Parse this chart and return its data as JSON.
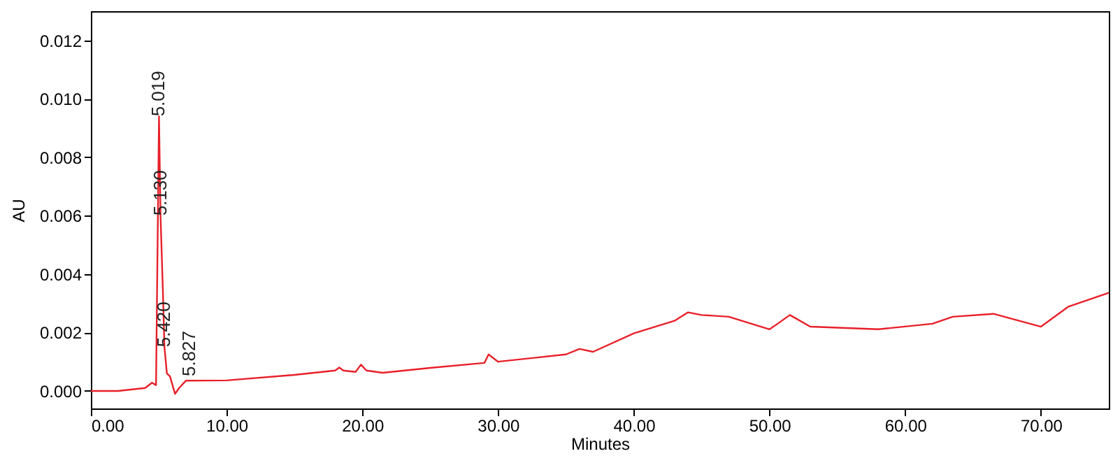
{
  "chart_data": {
    "type": "line",
    "xlabel": "Minutes",
    "ylabel": "AU",
    "xlim": [
      0,
      75
    ],
    "ylim": [
      -0.0006,
      0.013
    ],
    "xticks": [
      {
        "value": 0,
        "label": "0.00"
      },
      {
        "value": 10,
        "label": "10.00"
      },
      {
        "value": 20,
        "label": "20.00"
      },
      {
        "value": 30,
        "label": "30.00"
      },
      {
        "value": 40,
        "label": "40.00"
      },
      {
        "value": 50,
        "label": "50.00"
      },
      {
        "value": 60,
        "label": "60.00"
      },
      {
        "value": 70,
        "label": "70.00"
      }
    ],
    "yticks": [
      {
        "value": 0,
        "label": "0.000"
      },
      {
        "value": 0.002,
        "label": "0.002"
      },
      {
        "value": 0.004,
        "label": "0.004"
      },
      {
        "value": 0.006,
        "label": "0.006"
      },
      {
        "value": 0.008,
        "label": "0.008"
      },
      {
        "value": 0.01,
        "label": "0.010"
      },
      {
        "value": 0.012,
        "label": "0.012"
      }
    ],
    "grid": false,
    "marker": "none",
    "line_style": "solid",
    "x": [
      0,
      2,
      4,
      4.5,
      4.8,
      5.019,
      5.13,
      5.3,
      5.42,
      5.6,
      5.827,
      6.2,
      6.5,
      7,
      10,
      15,
      18,
      18.3,
      18.6,
      19.5,
      19.9,
      20.3,
      21.5,
      25,
      29,
      29.3,
      30,
      35,
      36,
      37,
      40,
      43,
      44,
      45,
      47,
      50,
      50.6,
      51.5,
      53,
      58,
      62,
      63.5,
      66.5,
      70,
      72,
      75
    ],
    "series": [
      {
        "color": "#e8202a",
        "values": [
          0,
          0,
          0.0001,
          0.00028,
          0.0002,
          0.0094,
          0.006,
          0.0035,
          0.0015,
          0.0006,
          0.0005,
          -0.0001,
          0.0001,
          0.00035,
          0.00036,
          0.00055,
          0.0007,
          0.0008,
          0.0007,
          0.00065,
          0.0009,
          0.0007,
          0.00062,
          0.00079,
          0.00096,
          0.00125,
          0.001,
          0.00125,
          0.00144,
          0.00134,
          0.00197,
          0.0024,
          0.00269,
          0.0026,
          0.00254,
          0.00211,
          0.0023,
          0.0026,
          0.0022,
          0.00211,
          0.0023,
          0.00254,
          0.00264,
          0.0022,
          0.00288,
          0.00336
        ]
      }
    ],
    "annotations": [
      {
        "text": "5.019",
        "x": 5.019,
        "y": 0.0094
      },
      {
        "text": "5.130",
        "x": 5.13,
        "y": 0.006
      },
      {
        "text": "5.420",
        "x": 5.42,
        "y": 0.0015
      },
      {
        "text": "5.827",
        "x": 5.827,
        "y": 0.0005
      }
    ]
  }
}
